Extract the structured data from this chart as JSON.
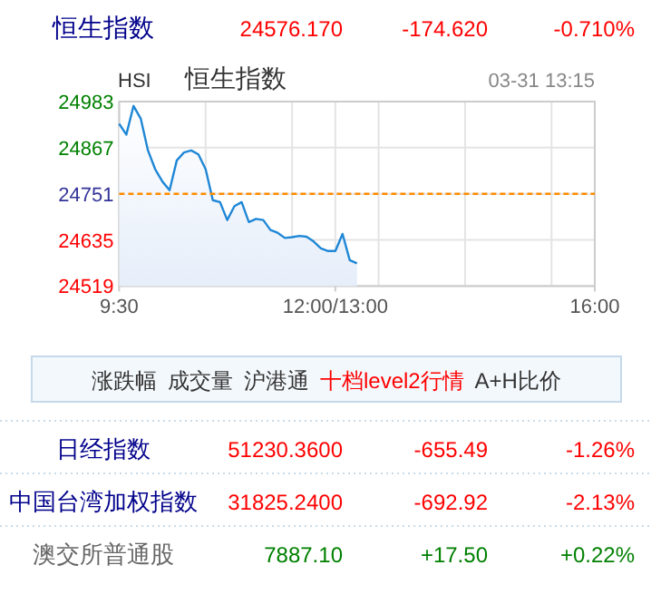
{
  "chart_data": {
    "type": "area",
    "title": "恒生指数",
    "subtitle": "恒生指数",
    "annotations": [
      "24576.170",
      "-174.620",
      "-0.710%",
      "HSI",
      "03-31 13:15",
      "涨跌幅",
      "成交量",
      "沪港通",
      "十档level2行情",
      "A+H比价",
      "日经指数",
      "51230.3600",
      "-655.49",
      "-1.26%",
      "中国台湾加权指数",
      "31825.2400",
      "-692.92",
      "-2.13%",
      "澳交所普通股",
      "7887.10",
      "+17.50",
      "+0.22%"
    ],
    "categories": [
      "9:30",
      null,
      null,
      null,
      null,
      null,
      null,
      null,
      null,
      null,
      null,
      null,
      null,
      null,
      null,
      null,
      null,
      null,
      null,
      null,
      null,
      null,
      null,
      null,
      null,
      null,
      null,
      null,
      null,
      null,
      "12:00/13:00",
      null,
      null,
      null,
      null,
      null,
      null,
      null,
      null,
      null,
      null,
      null,
      null,
      null,
      null,
      null,
      null,
      null,
      null,
      null,
      null,
      null,
      null,
      null,
      null,
      null,
      null,
      null,
      null,
      null,
      null,
      null,
      null,
      null,
      null,
      null,
      "16:00"
    ],
    "series": [
      {
        "color": "#1f87d6",
        "values": [
          24927,
          24900,
          24972,
          24940,
          24860,
          24813,
          24782,
          24760,
          24835,
          24855,
          24860,
          24850,
          24813,
          24735,
          24730,
          24685,
          24720,
          24730,
          24680,
          24688,
          24685,
          24660,
          24653,
          24640,
          24642,
          24645,
          24643,
          24631,
          24614,
          24607,
          24607,
          24650,
          24584,
          24576,
          null,
          null,
          null,
          null,
          null,
          null,
          null,
          null,
          null,
          null,
          null,
          null,
          null,
          null,
          null,
          null,
          null,
          null,
          null,
          null,
          null,
          null,
          null,
          null,
          null,
          null,
          null,
          null,
          null,
          null,
          null,
          null,
          null
        ]
      }
    ],
    "ylim": [
      24519,
      24983
    ],
    "yticks": [
      24519,
      24635,
      24751,
      24867,
      24983
    ],
    "ref_lines": [
      {
        "axis": "y",
        "value": 24751,
        "color": "#ff8c00",
        "line_style": "dashed"
      }
    ],
    "grid": true
  }
}
